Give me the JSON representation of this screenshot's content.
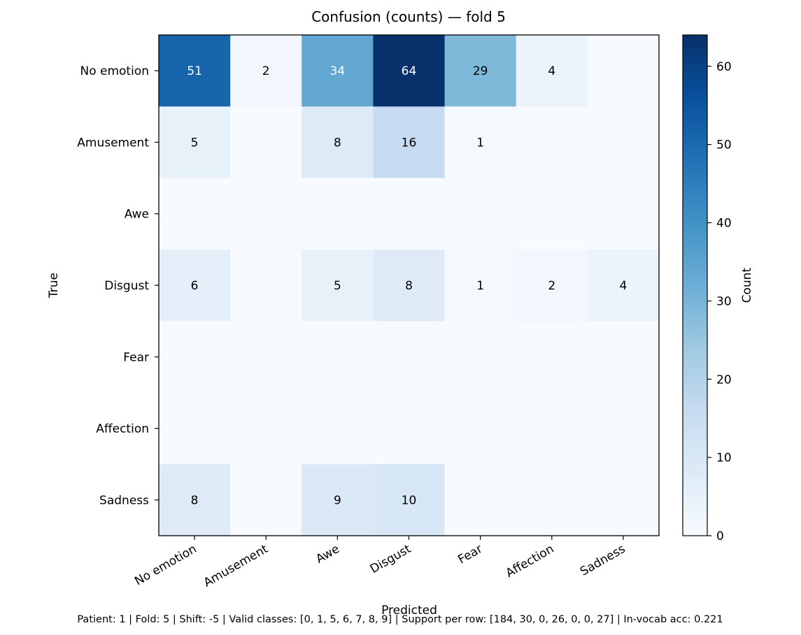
{
  "chart_data": {
    "type": "heatmap",
    "title": "Confusion (counts) — fold 5",
    "xlabel": "Predicted",
    "ylabel": "True",
    "x_categories": [
      "No emotion",
      "Amusement",
      "Awe",
      "Disgust",
      "Fear",
      "Affection",
      "Sadness"
    ],
    "y_categories": [
      "No emotion",
      "Amusement",
      "Awe",
      "Disgust",
      "Fear",
      "Affection",
      "Sadness"
    ],
    "values": [
      [
        51,
        2,
        34,
        64,
        29,
        4,
        0
      ],
      [
        5,
        0,
        8,
        16,
        1,
        0,
        0
      ],
      [
        0,
        0,
        0,
        0,
        0,
        0,
        0
      ],
      [
        6,
        0,
        5,
        8,
        1,
        2,
        4
      ],
      [
        0,
        0,
        0,
        0,
        0,
        0,
        0
      ],
      [
        0,
        0,
        0,
        0,
        0,
        0,
        0
      ],
      [
        8,
        0,
        9,
        10,
        0,
        0,
        0
      ]
    ],
    "cell_labels": [
      [
        "51",
        "2",
        "34",
        "64",
        "29",
        "4",
        ""
      ],
      [
        "5",
        "",
        "8",
        "16",
        "1",
        "",
        ""
      ],
      [
        "",
        "",
        "",
        "",
        "",
        "",
        ""
      ],
      [
        "6",
        "",
        "5",
        "8",
        "1",
        "2",
        "4"
      ],
      [
        "",
        "",
        "",
        "",
        "",
        "",
        ""
      ],
      [
        "",
        "",
        "",
        "",
        "",
        "",
        ""
      ],
      [
        "8",
        "",
        "9",
        "10",
        "",
        "",
        ""
      ]
    ],
    "colormap": "Blues",
    "vmin": 0,
    "vmax": 64,
    "colorbar": {
      "label": "Count",
      "ticks": [
        0,
        10,
        20,
        30,
        40,
        50,
        60
      ],
      "tick_labels": [
        "0",
        "10",
        "20",
        "30",
        "40",
        "50",
        "60"
      ]
    },
    "footer": "Patient: 1 | Fold: 5 | Shift: -5 | Valid classes: [0, 1, 5, 6, 7, 8, 9] | Support per row: [184, 30, 0, 26, 0, 0, 27] | In-vocab acc: 0.221"
  }
}
